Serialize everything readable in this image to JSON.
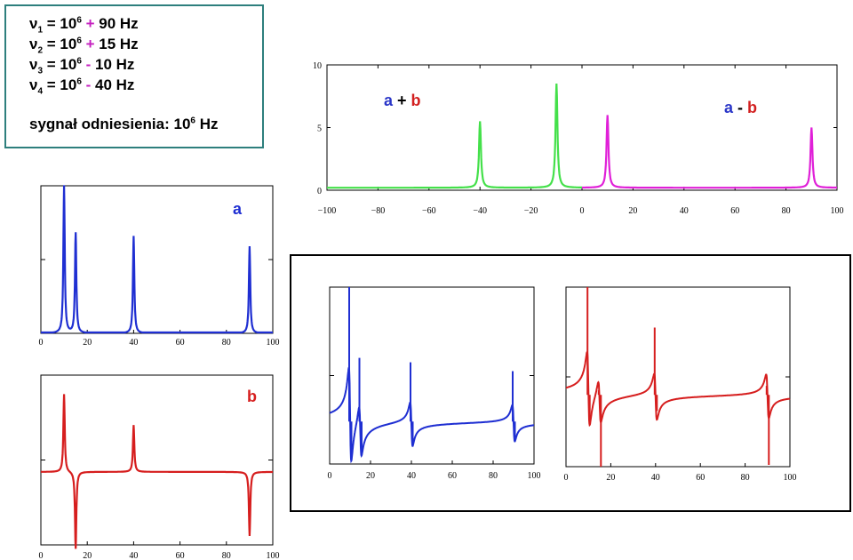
{
  "info": {
    "border_color": "#2e7f7d",
    "op_color": "#c41fbf",
    "lines": [
      {
        "nu": "ν",
        "sub": "1",
        "eq": " = 10",
        "sup": "6",
        "op": " + ",
        "rest": "90 Hz"
      },
      {
        "nu": "ν",
        "sub": "2",
        "eq": " = 10",
        "sup": "6",
        "op": " + ",
        "rest": "15 Hz"
      },
      {
        "nu": "ν",
        "sub": "3",
        "eq": " = 10",
        "sup": "6",
        "op": " - ",
        "rest": " 10 Hz"
      },
      {
        "nu": "ν",
        "sub": "4",
        "eq": " = 10",
        "sup": "6",
        "op": " - ",
        "rest": " 40 Hz"
      }
    ],
    "reference": {
      "text": "sygnał odniesienia: 10",
      "sup": "6",
      "unit": " Hz"
    }
  },
  "chart_data": [
    {
      "id": "sum-diff",
      "type": "line",
      "xlim": [
        -100,
        100
      ],
      "ylim": [
        0,
        10
      ],
      "xticks": [
        "−100",
        "−80",
        "−60",
        "−40",
        "−20",
        "0",
        "20",
        "40",
        "60",
        "80",
        "100"
      ],
      "yticks": [
        "0",
        "5",
        "10"
      ],
      "series": [
        {
          "color": "#44e04a",
          "x_range": [
            -100,
            0
          ],
          "baseline": 0.2,
          "peaks": [
            {
              "x": -40,
              "y": 5.5
            },
            {
              "x": -10,
              "y": 8.5
            }
          ]
        },
        {
          "color": "#e020d8",
          "x_range": [
            0,
            100
          ],
          "baseline": 0.2,
          "peaks": [
            {
              "x": 10,
              "y": 6.0
            },
            {
              "x": 90,
              "y": 5.0
            }
          ]
        }
      ],
      "annotations": [
        {
          "parts": [
            {
              "text": "a",
              "color": "#2a36c8"
            },
            {
              "text": " + ",
              "color": "#000000"
            },
            {
              "text": "b",
              "color": "#d21f1f"
            }
          ]
        },
        {
          "parts": [
            {
              "text": "a",
              "color": "#2a36c8"
            },
            {
              "text": " - ",
              "color": "#000000"
            },
            {
              "text": "b",
              "color": "#d21f1f"
            }
          ]
        }
      ]
    },
    {
      "id": "a",
      "type": "line",
      "xlim": [
        0,
        100
      ],
      "ylim": [
        0,
        1
      ],
      "xticks": [
        "0",
        "20",
        "40",
        "60",
        "80",
        "100"
      ],
      "label": "a",
      "color": "#1f2fd2",
      "peaks": [
        {
          "x": 10,
          "y": 1.0
        },
        {
          "x": 15,
          "y": 0.68
        },
        {
          "x": 40,
          "y": 0.66
        },
        {
          "x": 90,
          "y": 0.59
        }
      ]
    },
    {
      "id": "b",
      "type": "line",
      "xlim": [
        0,
        100
      ],
      "ylim": [
        -1,
        1
      ],
      "xticks": [
        "0",
        "20",
        "40",
        "60",
        "80",
        "100"
      ],
      "label": "b",
      "color": "#d61e1e",
      "peaks": [
        {
          "x": 10,
          "y": 1.0
        },
        {
          "x": 15,
          "y": -0.99
        },
        {
          "x": 40,
          "y": 0.6
        },
        {
          "x": 90,
          "y": -0.82
        }
      ]
    },
    {
      "id": "phase-blue",
      "type": "line",
      "xlim": [
        0,
        100
      ],
      "ylim": [
        -1,
        1
      ],
      "xticks": [
        "0",
        "20",
        "40",
        "60",
        "80",
        "100"
      ],
      "color": "#1f2fd2",
      "baseline": -0.52,
      "features": [
        {
          "x": 10,
          "up": 1.0,
          "down": -0.95
        },
        {
          "x": 15,
          "up": 0.2,
          "down": -0.85
        },
        {
          "x": 40,
          "up": 0.15,
          "down": -0.75
        },
        {
          "x": 90,
          "up": 0.05,
          "down": -0.7
        }
      ]
    },
    {
      "id": "phase-red",
      "type": "line",
      "xlim": [
        0,
        100
      ],
      "ylim": [
        -1,
        1
      ],
      "xticks": [
        "0",
        "20",
        "40",
        "60",
        "80",
        "100"
      ],
      "color": "#d61e1e",
      "baseline": -0.2,
      "features": [
        {
          "x": 10,
          "up": 1.0,
          "down": -0.5
        },
        {
          "x": 15,
          "up": -0.15,
          "down": -1.0
        },
        {
          "x": 40,
          "up": 0.55,
          "down": -0.38
        },
        {
          "x": 90,
          "up": -0.1,
          "down": -0.98
        }
      ]
    }
  ]
}
